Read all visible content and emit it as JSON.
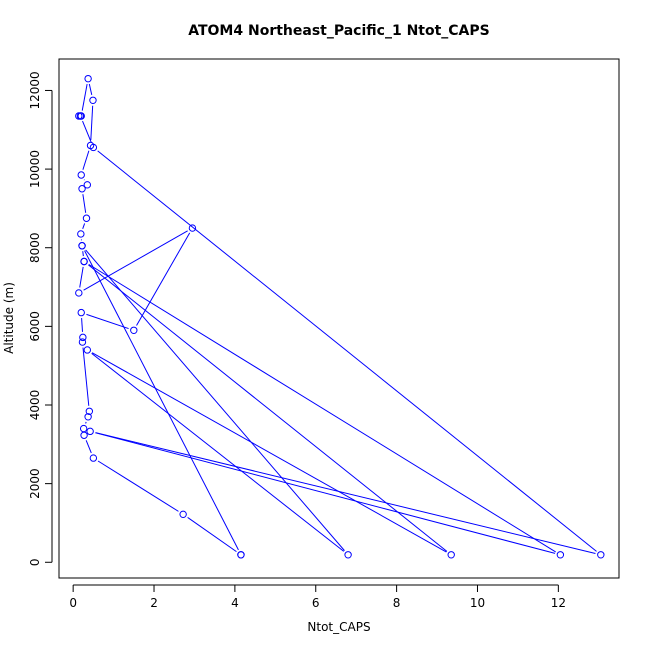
{
  "chart_data": {
    "type": "line",
    "title": "ATOM4 Northeast_Pacific_1 Ntot_CAPS",
    "xlabel": "Ntot_CAPS",
    "ylabel": "Altitude (m)",
    "xlim": [
      -0.35,
      13.5
    ],
    "ylim": [
      -400,
      12800
    ],
    "xticks": [
      0,
      2,
      4,
      6,
      8,
      10,
      12
    ],
    "yticks": [
      0,
      2000,
      4000,
      6000,
      8000,
      10000,
      12000
    ],
    "line_color": "#0000ff",
    "series": [
      {
        "x": [
          4.15,
          2.72,
          0.5,
          0.27,
          0.26,
          0.37,
          0.4,
          0.23,
          0.24,
          0.2,
          1.5,
          2.95,
          0.14,
          0.27,
          0.22,
          0.19,
          0.33,
          0.22,
          0.35,
          0.2,
          0.43,
          0.49,
          0.37,
          0.2,
          0.14,
          0.18,
          0.5,
          13.05,
          0.42,
          12.05,
          0.27,
          9.35,
          0.35,
          6.8,
          0.22,
          4.15
        ],
        "y": [
          190,
          1220,
          2650,
          3230,
          3400,
          3700,
          3840,
          5600,
          5720,
          6350,
          5900,
          8500,
          6850,
          7650,
          8050,
          8350,
          8750,
          9500,
          9600,
          9850,
          10600,
          11750,
          12300,
          11350,
          11350,
          11350,
          10550,
          190,
          3330,
          190,
          7650,
          190,
          5400,
          190,
          8050,
          190
        ]
      }
    ]
  }
}
